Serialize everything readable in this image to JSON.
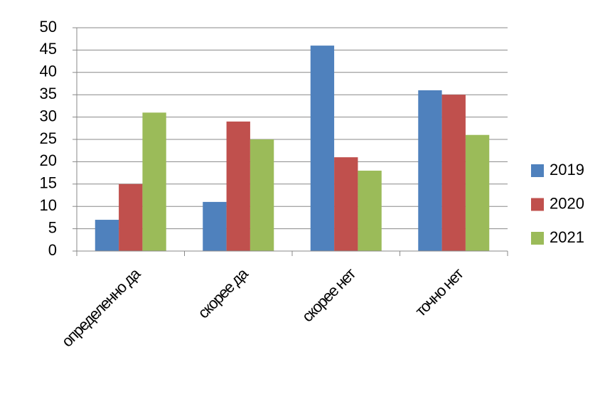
{
  "chart_data": {
    "type": "bar",
    "categories": [
      "определенно да",
      "скорее да",
      "скорее нет",
      "точно нет"
    ],
    "series": [
      {
        "name": "2019",
        "color": "#4f81bd",
        "values": [
          7,
          11,
          46,
          36
        ]
      },
      {
        "name": "2020",
        "color": "#c0504d",
        "values": [
          15,
          29,
          21,
          35
        ]
      },
      {
        "name": "2021",
        "color": "#9bbb59",
        "values": [
          31,
          25,
          18,
          26
        ]
      }
    ],
    "ylim": [
      0,
      50
    ],
    "yticks": [
      0,
      5,
      10,
      15,
      20,
      25,
      30,
      35,
      40,
      45,
      50
    ],
    "grid": true,
    "legend": "right"
  }
}
